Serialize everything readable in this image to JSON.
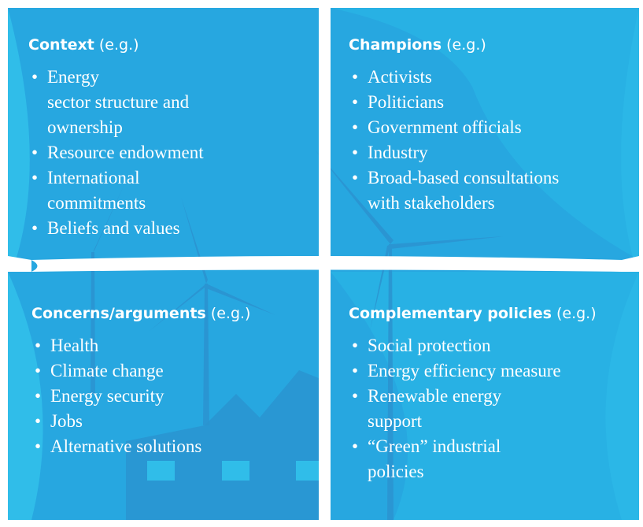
{
  "quadrants": [
    {
      "title": "Context",
      "note": "(e.g.)",
      "items": [
        [
          "Energy",
          "sector structure and",
          "ownership"
        ],
        [
          "Resource endowment"
        ],
        [
          "International",
          "commitments"
        ],
        [
          "Beliefs and values"
        ]
      ]
    },
    {
      "title": "Champions",
      "note": "(e.g.)",
      "items": [
        [
          "Activists"
        ],
        [
          "Politicians"
        ],
        [
          "Government officials"
        ],
        [
          "Industry"
        ],
        [
          "Broad-based consultations",
          "with stakeholders"
        ]
      ]
    },
    {
      "title": "Concerns/arguments",
      "note": "(e.g.)",
      "items": [
        [
          "Health"
        ],
        [
          "Climate change"
        ],
        [
          "Energy security"
        ],
        [
          "Jobs"
        ],
        [
          "Alternative solutions"
        ]
      ]
    },
    {
      "title": "Complementary policies",
      "note": "(e.g.)",
      "items": [
        [
          "Social protection"
        ],
        [
          "Energy efficiency measure"
        ],
        [
          "Renewable energy",
          "support"
        ],
        [
          "“Green” industrial",
          "policies"
        ]
      ]
    }
  ]
}
